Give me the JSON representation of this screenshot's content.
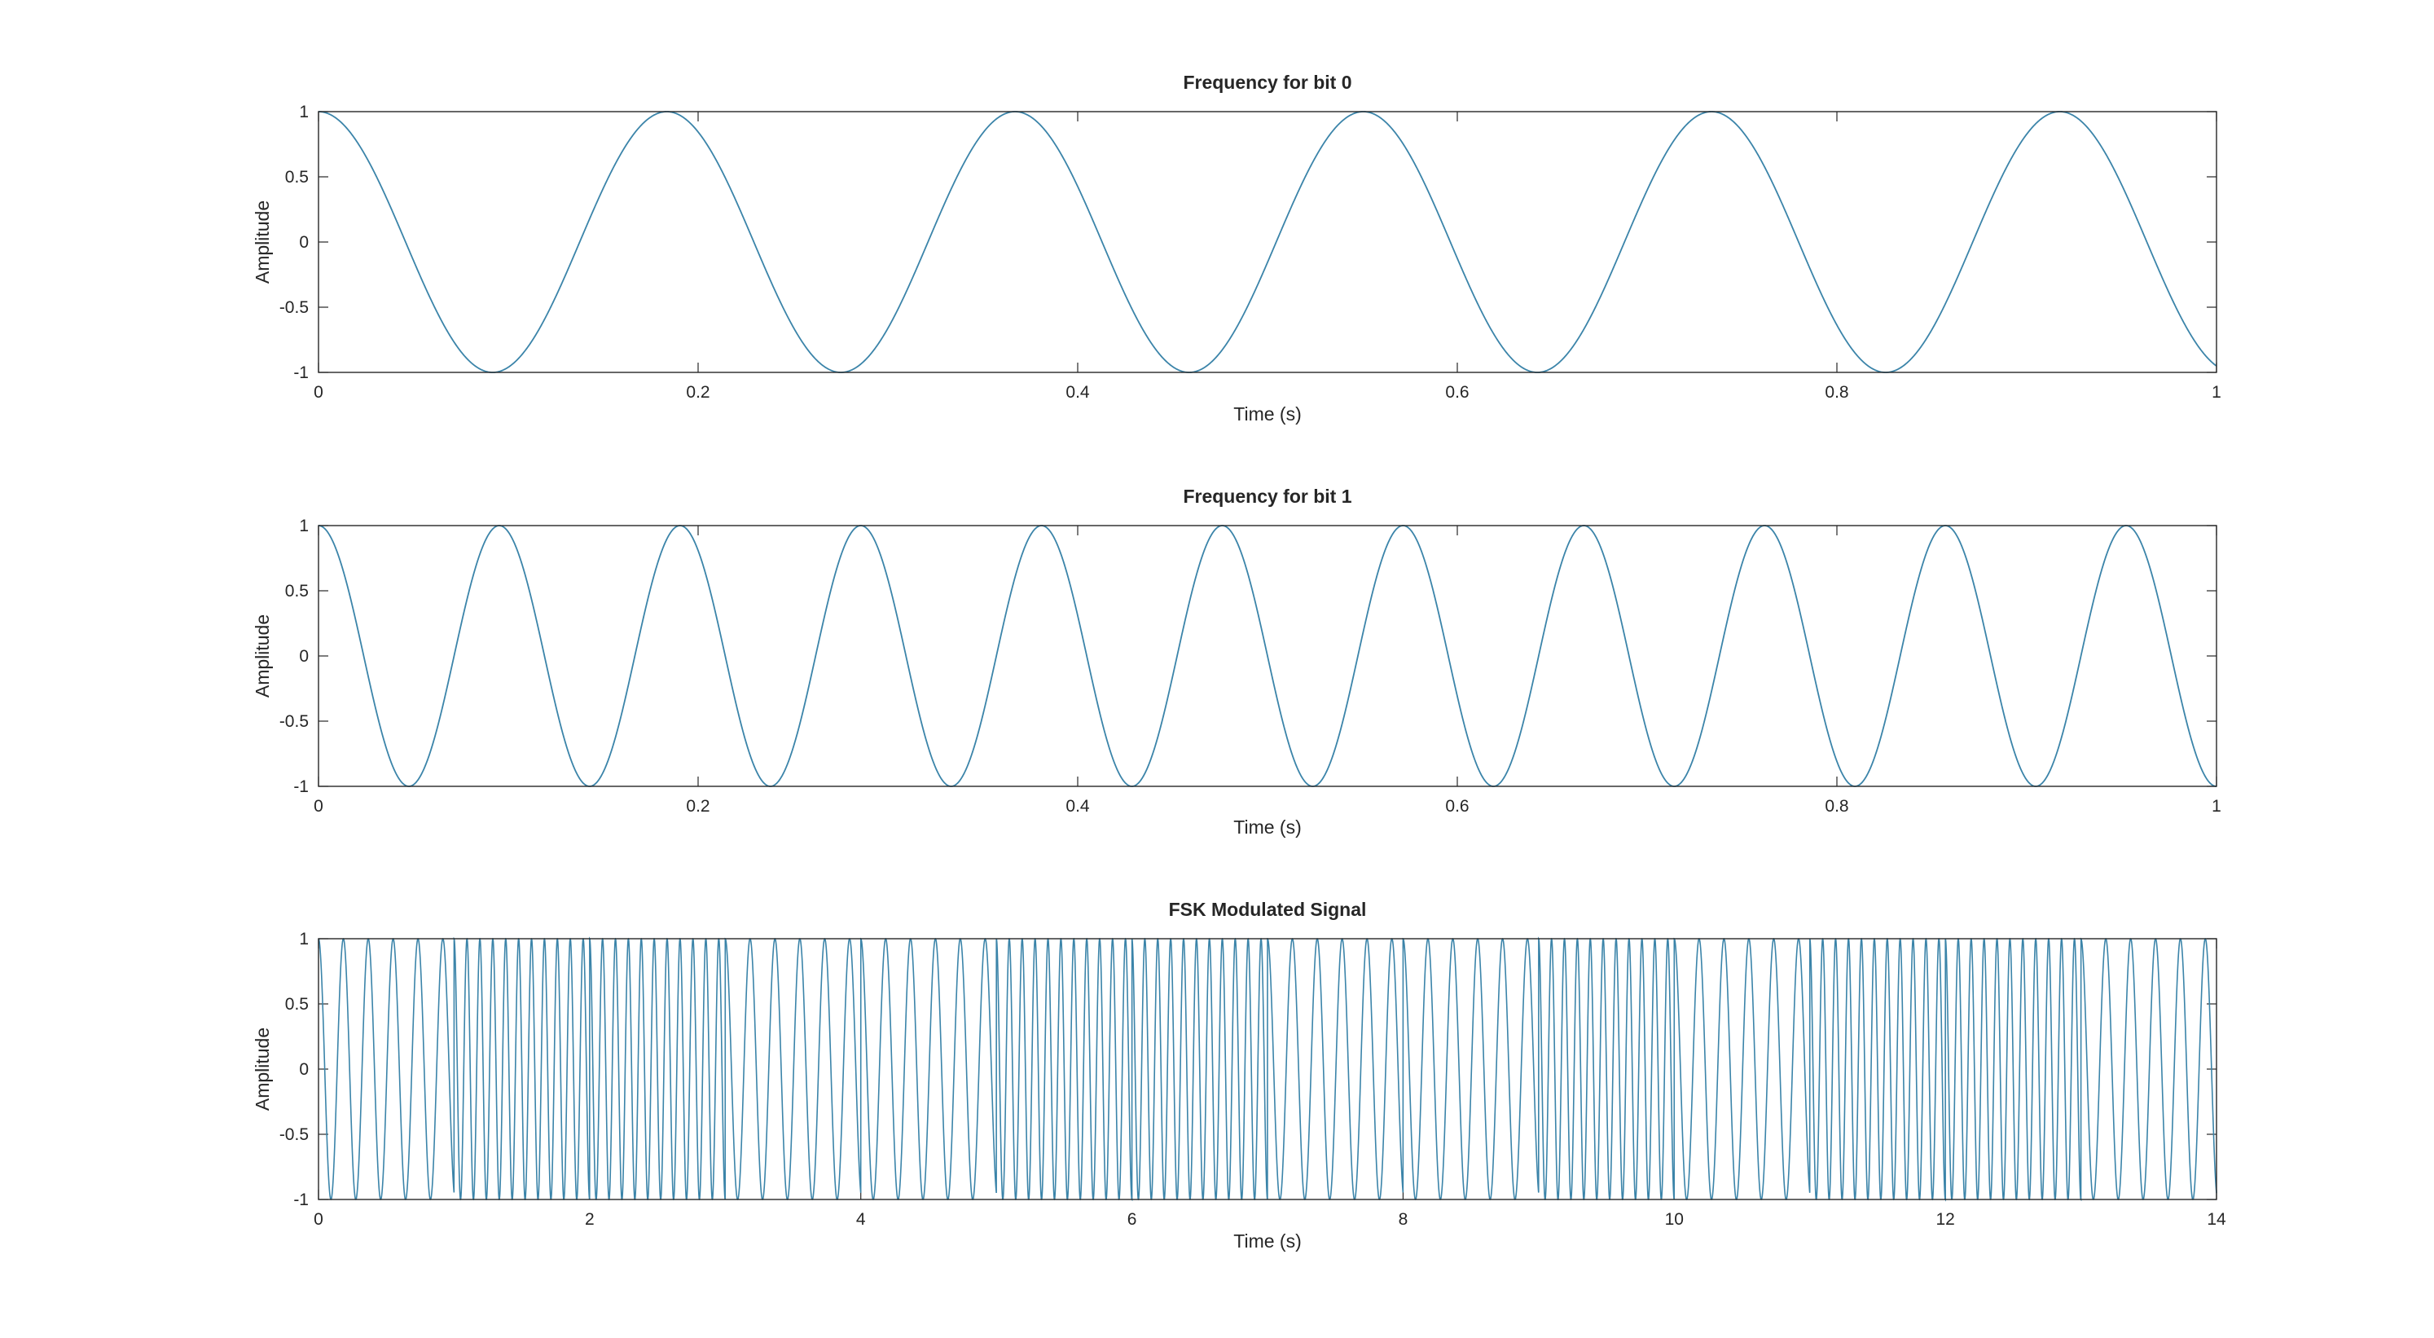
{
  "chart_data": [
    {
      "type": "line",
      "title": "Frequency for bit 0",
      "xlabel": "Time (s)",
      "ylabel": "Amplitude",
      "xlim": [
        0,
        1
      ],
      "ylim": [
        -1,
        1
      ],
      "xticks": [
        0,
        0.2,
        0.4,
        0.6,
        0.8,
        1
      ],
      "xtick_labels": [
        "0",
        "0.2",
        "0.4",
        "0.6",
        "0.8",
        "1"
      ],
      "yticks": [
        -1,
        -0.5,
        0,
        0.5,
        1
      ],
      "ytick_labels": [
        "-1",
        "-0.5",
        "0",
        "0.5",
        "1"
      ],
      "grid": false,
      "series": [
        {
          "function": "cosine",
          "frequency_hz": 5.45,
          "amplitude": 1,
          "x_start": 0,
          "x_end": 1,
          "color": "#3b84a9"
        }
      ]
    },
    {
      "type": "line",
      "title": "Frequency for bit 1",
      "xlabel": "Time (s)",
      "ylabel": "Amplitude",
      "xlim": [
        0,
        1
      ],
      "ylim": [
        -1,
        1
      ],
      "xticks": [
        0,
        0.2,
        0.4,
        0.6,
        0.8,
        1
      ],
      "xtick_labels": [
        "0",
        "0.2",
        "0.4",
        "0.6",
        "0.8",
        "1"
      ],
      "yticks": [
        -1,
        -0.5,
        0,
        0.5,
        1
      ],
      "ytick_labels": [
        "-1",
        "-0.5",
        "0",
        "0.5",
        "1"
      ],
      "grid": false,
      "series": [
        {
          "function": "cosine",
          "frequency_hz": 10.5,
          "amplitude": 1,
          "x_start": 0,
          "x_end": 1,
          "color": "#3b84a9"
        }
      ]
    },
    {
      "type": "line",
      "title": "FSK Modulated Signal",
      "xlabel": "Time (s)",
      "ylabel": "Amplitude",
      "xlim": [
        0,
        14
      ],
      "ylim": [
        -1,
        1
      ],
      "xticks": [
        0,
        2,
        4,
        6,
        8,
        10,
        12,
        14
      ],
      "xtick_labels": [
        "0",
        "2",
        "4",
        "6",
        "8",
        "10",
        "12",
        "14"
      ],
      "yticks": [
        -1,
        -0.5,
        0,
        0.5,
        1
      ],
      "ytick_labels": [
        "-1",
        "-0.5",
        "0",
        "0.5",
        "1"
      ],
      "grid": false,
      "series": [
        {
          "function": "fsk",
          "bit_duration_s": 1,
          "bits": [
            0,
            1,
            1,
            0,
            0,
            1,
            1,
            0,
            0,
            1,
            0,
            1,
            1,
            0
          ],
          "freq_bit0_hz": 5.45,
          "freq_bit1_hz": 10.5,
          "amplitude": 1,
          "x_start": 0,
          "x_end": 14,
          "color": "#3b84a9"
        }
      ]
    }
  ]
}
